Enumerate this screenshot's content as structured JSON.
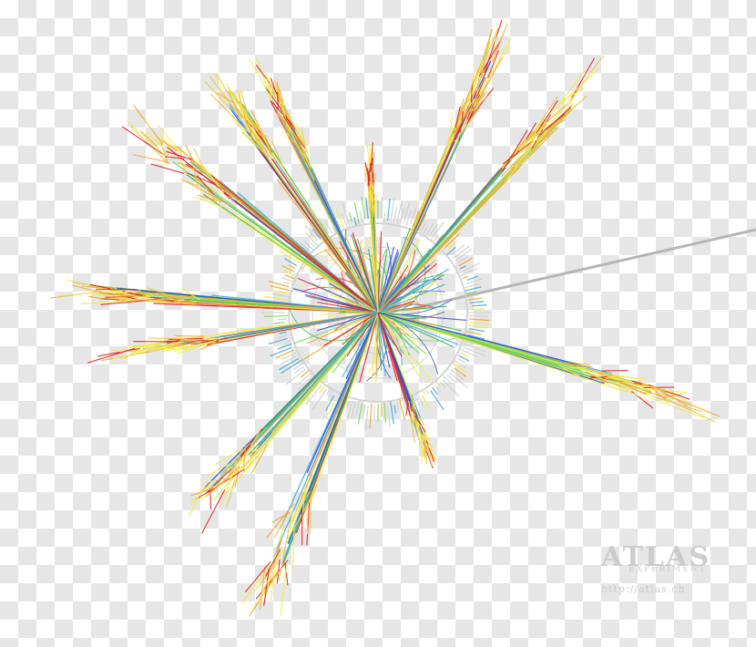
{
  "image": {
    "subject": "particle collision event display",
    "colors": {
      "background_light": "#ffffff",
      "background_dark": "#e6e6e6",
      "detector_rings": "#d5d5d5",
      "beam_line": "#b5b5b5",
      "tracks": [
        "#e02020",
        "#f5a623",
        "#f2e94e",
        "#7ed957",
        "#3cb44b",
        "#4aa8e0",
        "#2f4fd8"
      ]
    }
  },
  "watermark": {
    "logo": "ATLAS",
    "subtitle": "EXPERIMENT",
    "url": "http://atlas.ch"
  }
}
